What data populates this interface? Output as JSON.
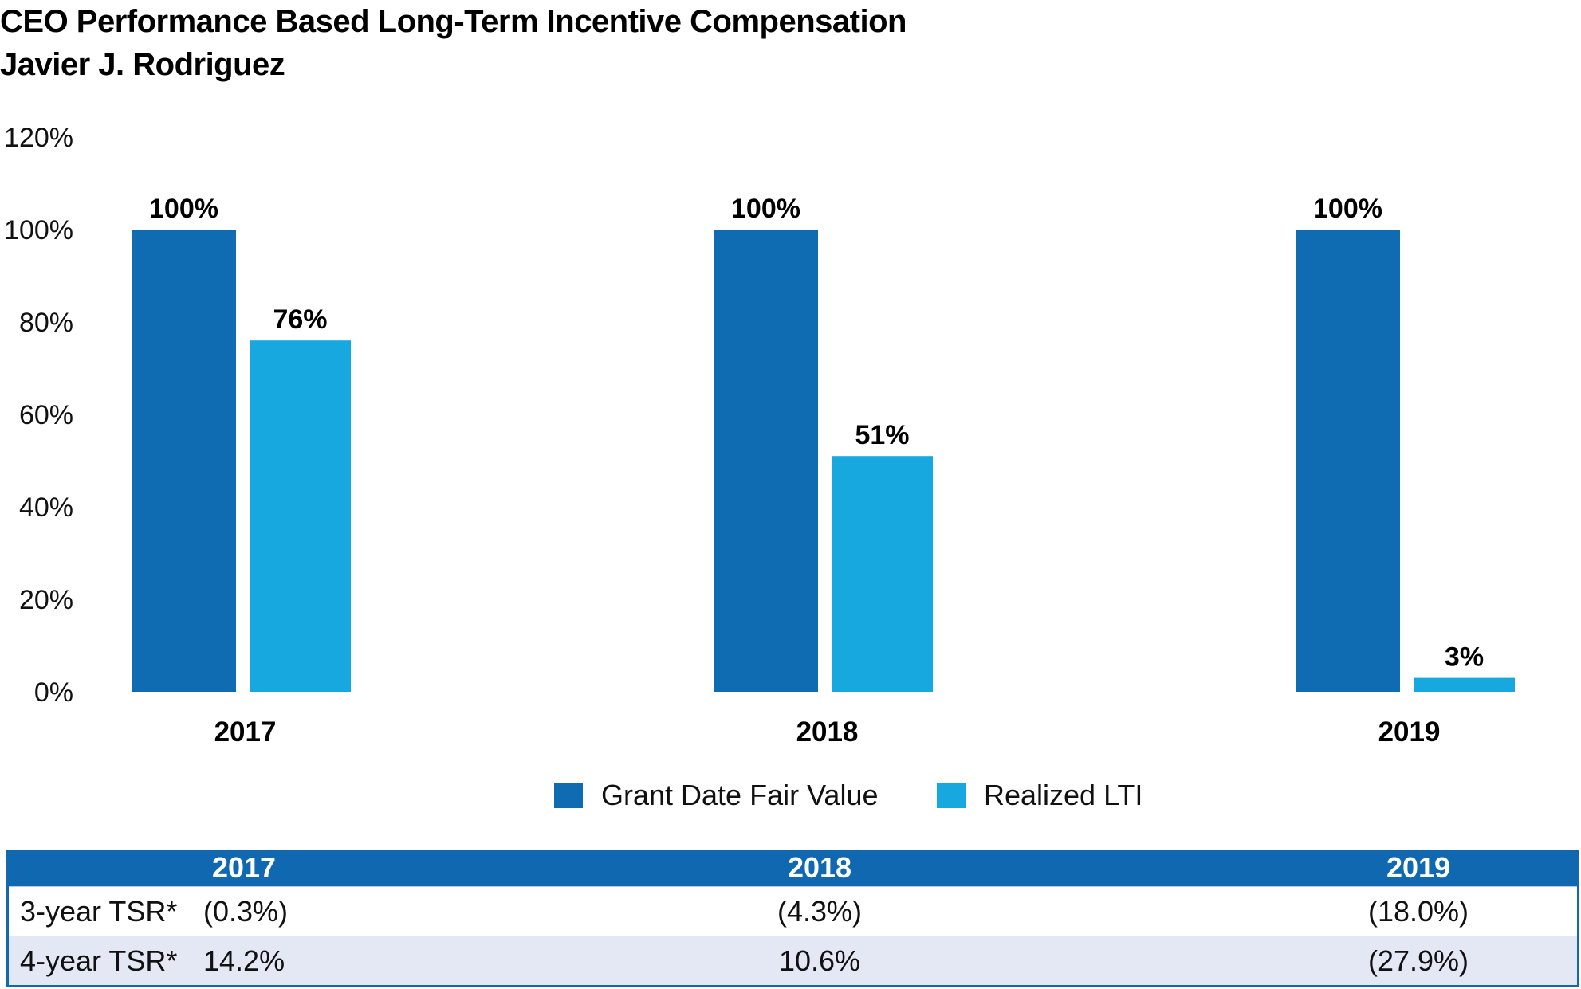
{
  "title": {
    "line1": "CEO Performance Based Long-Term Incentive Compensation",
    "line2": "Javier J. Rodriguez"
  },
  "colors": {
    "grant": "#106cb2",
    "realized": "#18a8e0",
    "table_header": "#1069b0",
    "table_alt_row": "#e3e8f4"
  },
  "chart_data": {
    "type": "bar",
    "categories": [
      "2017",
      "2018",
      "2019"
    ],
    "series": [
      {
        "name": "Grant Date Fair Value",
        "values": [
          100,
          100,
          100
        ],
        "labels": [
          "100%",
          "100%",
          "100%"
        ]
      },
      {
        "name": "Realized LTI",
        "values": [
          76,
          51,
          3
        ],
        "labels": [
          "76%",
          "51%",
          "3%"
        ]
      }
    ],
    "yticks": [
      "0%",
      "20%",
      "40%",
      "60%",
      "80%",
      "100%",
      "120%"
    ],
    "ylim": [
      0,
      120
    ],
    "ylabel": "",
    "xlabel": "",
    "legend_position": "bottom-center",
    "grid": false
  },
  "table": {
    "headers": [
      "2017",
      "2018",
      "2019"
    ],
    "rows": [
      {
        "label": "3-year TSR*",
        "values": [
          "(0.3%)",
          "(4.3%)",
          "(18.0%)"
        ]
      },
      {
        "label": "4-year TSR*",
        "values": [
          "14.2%",
          "10.6%",
          "(27.9%)"
        ]
      }
    ]
  }
}
